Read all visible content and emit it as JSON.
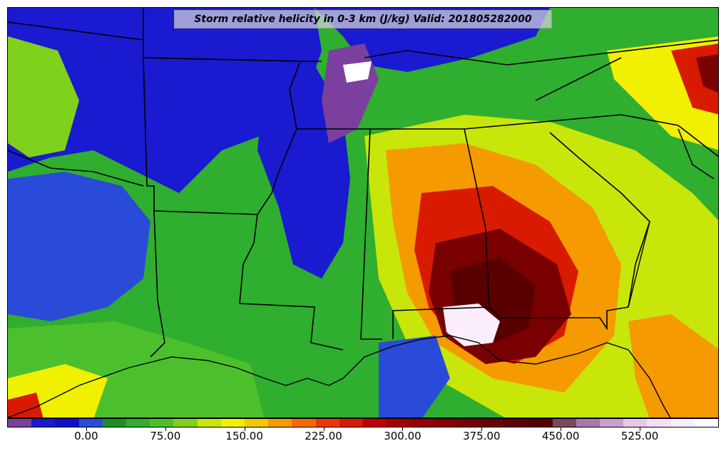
{
  "title": "Storm relative helicity in 0-3 km (J/kg) Valid: 201805282000",
  "colorbar": {
    "colors": [
      "#7b3f9e",
      "#1a1ad0",
      "#1010c8",
      "#2a4ad8",
      "#1f8f1f",
      "#2fae2f",
      "#4cc02c",
      "#7fd11c",
      "#c8e60a",
      "#f0f000",
      "#f5c800",
      "#f59a00",
      "#f56a00",
      "#e83a00",
      "#d81a00",
      "#c00000",
      "#a80000",
      "#980000",
      "#880000",
      "#780000",
      "#680000",
      "#600000",
      "#580000",
      "#7a4a5a",
      "#a87aa8",
      "#caa0ca",
      "#e8c8e8",
      "#f5e0f5",
      "#fbeefb",
      "#ffffff"
    ],
    "tick_labels": [
      "0.00",
      "75.00",
      "150.00",
      "225.00",
      "300.00",
      "375.00",
      "450.00",
      "525.00"
    ],
    "min": -75,
    "max": 600
  },
  "legend_colors": {
    "purple": "#7b3f9e",
    "blue": "#1a1ad0",
    "green": "#2fae2f",
    "yellow": "#f0f000",
    "orange": "#f59a00",
    "red": "#d81a00",
    "darkred": "#780000",
    "white": "#ffffff"
  }
}
